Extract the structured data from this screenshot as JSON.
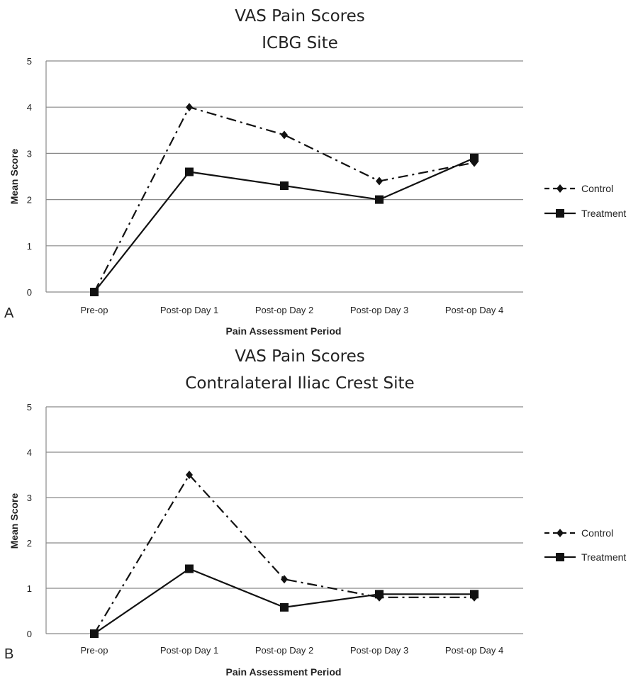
{
  "chart_data": [
    {
      "type": "line",
      "panel_label": "A",
      "title": "VAS Pain Scores",
      "subtitle": "ICBG Site",
      "xlabel": "Pain Assessment Period",
      "ylabel": "Mean Score",
      "categories": [
        "Pre-op",
        "Post-op Day 1",
        "Post-op Day 2",
        "Post-op Day 3",
        "Post-op Day 4"
      ],
      "ylim": [
        0,
        5
      ],
      "yticks": [
        "0",
        "1",
        "2",
        "3",
        "4",
        "5"
      ],
      "grid": true,
      "legend_position": "right",
      "series": [
        {
          "name": "Control",
          "values": [
            0,
            4.0,
            3.4,
            2.4,
            2.8
          ],
          "style": "dash-dot",
          "marker": "diamond",
          "color": "#111111"
        },
        {
          "name": "Treatment",
          "values": [
            0,
            2.6,
            2.3,
            2.0,
            2.9
          ],
          "style": "solid",
          "marker": "square",
          "color": "#111111"
        }
      ]
    },
    {
      "type": "line",
      "panel_label": "B",
      "title": "VAS Pain Scores",
      "subtitle": "Contralateral Iliac Crest Site",
      "xlabel": "Pain Assessment Period",
      "ylabel": "Mean Score",
      "categories": [
        "Pre-op",
        "Post-op Day 1",
        "Post-op Day 2",
        "Post-op Day 3",
        "Post-op Day 4"
      ],
      "ylim": [
        0,
        5
      ],
      "yticks": [
        "0",
        "1",
        "2",
        "3",
        "4",
        "5"
      ],
      "grid": true,
      "legend_position": "right",
      "series": [
        {
          "name": "Control",
          "values": [
            0,
            3.5,
            1.2,
            0.8,
            0.8
          ],
          "style": "dash-dot",
          "marker": "diamond",
          "color": "#111111"
        },
        {
          "name": "Treatment",
          "values": [
            0,
            1.43,
            0.58,
            0.87,
            0.87
          ],
          "style": "solid",
          "marker": "square",
          "color": "#111111"
        }
      ]
    }
  ]
}
